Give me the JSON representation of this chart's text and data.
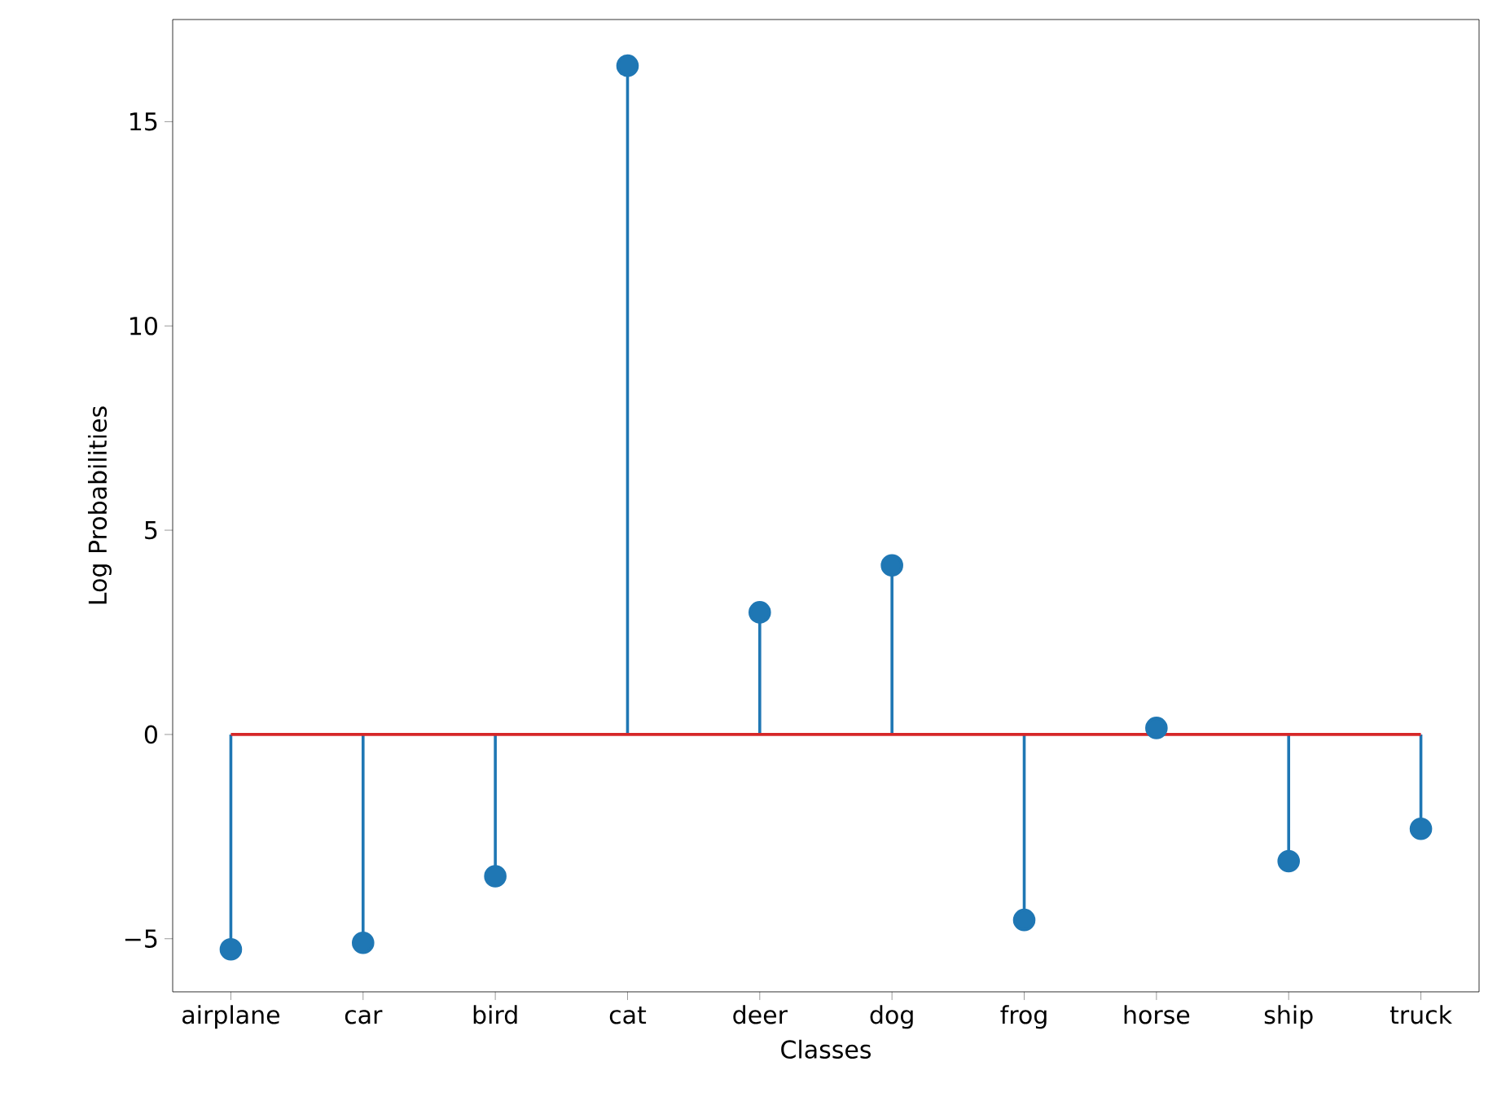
{
  "chart_data": {
    "type": "lollipop",
    "xlabel": "Classes",
    "ylabel": "Log Probabilities",
    "categories": [
      "airplane",
      "car",
      "bird",
      "cat",
      "deer",
      "dog",
      "frog",
      "horse",
      "ship",
      "truck"
    ],
    "values": [
      -5.26,
      -5.1,
      -3.47,
      16.37,
      2.99,
      4.14,
      -4.54,
      0.16,
      -3.1,
      -2.31
    ],
    "color": "#1f77b4",
    "marker": "circle",
    "ref_lines": [
      {
        "axis": "y",
        "value": 0,
        "color": "#d62728"
      }
    ],
    "ylim": [
      -6.3,
      17.5
    ],
    "yticks": [
      {
        "value": -5,
        "label": "−5"
      },
      0,
      5,
      10,
      15
    ]
  }
}
